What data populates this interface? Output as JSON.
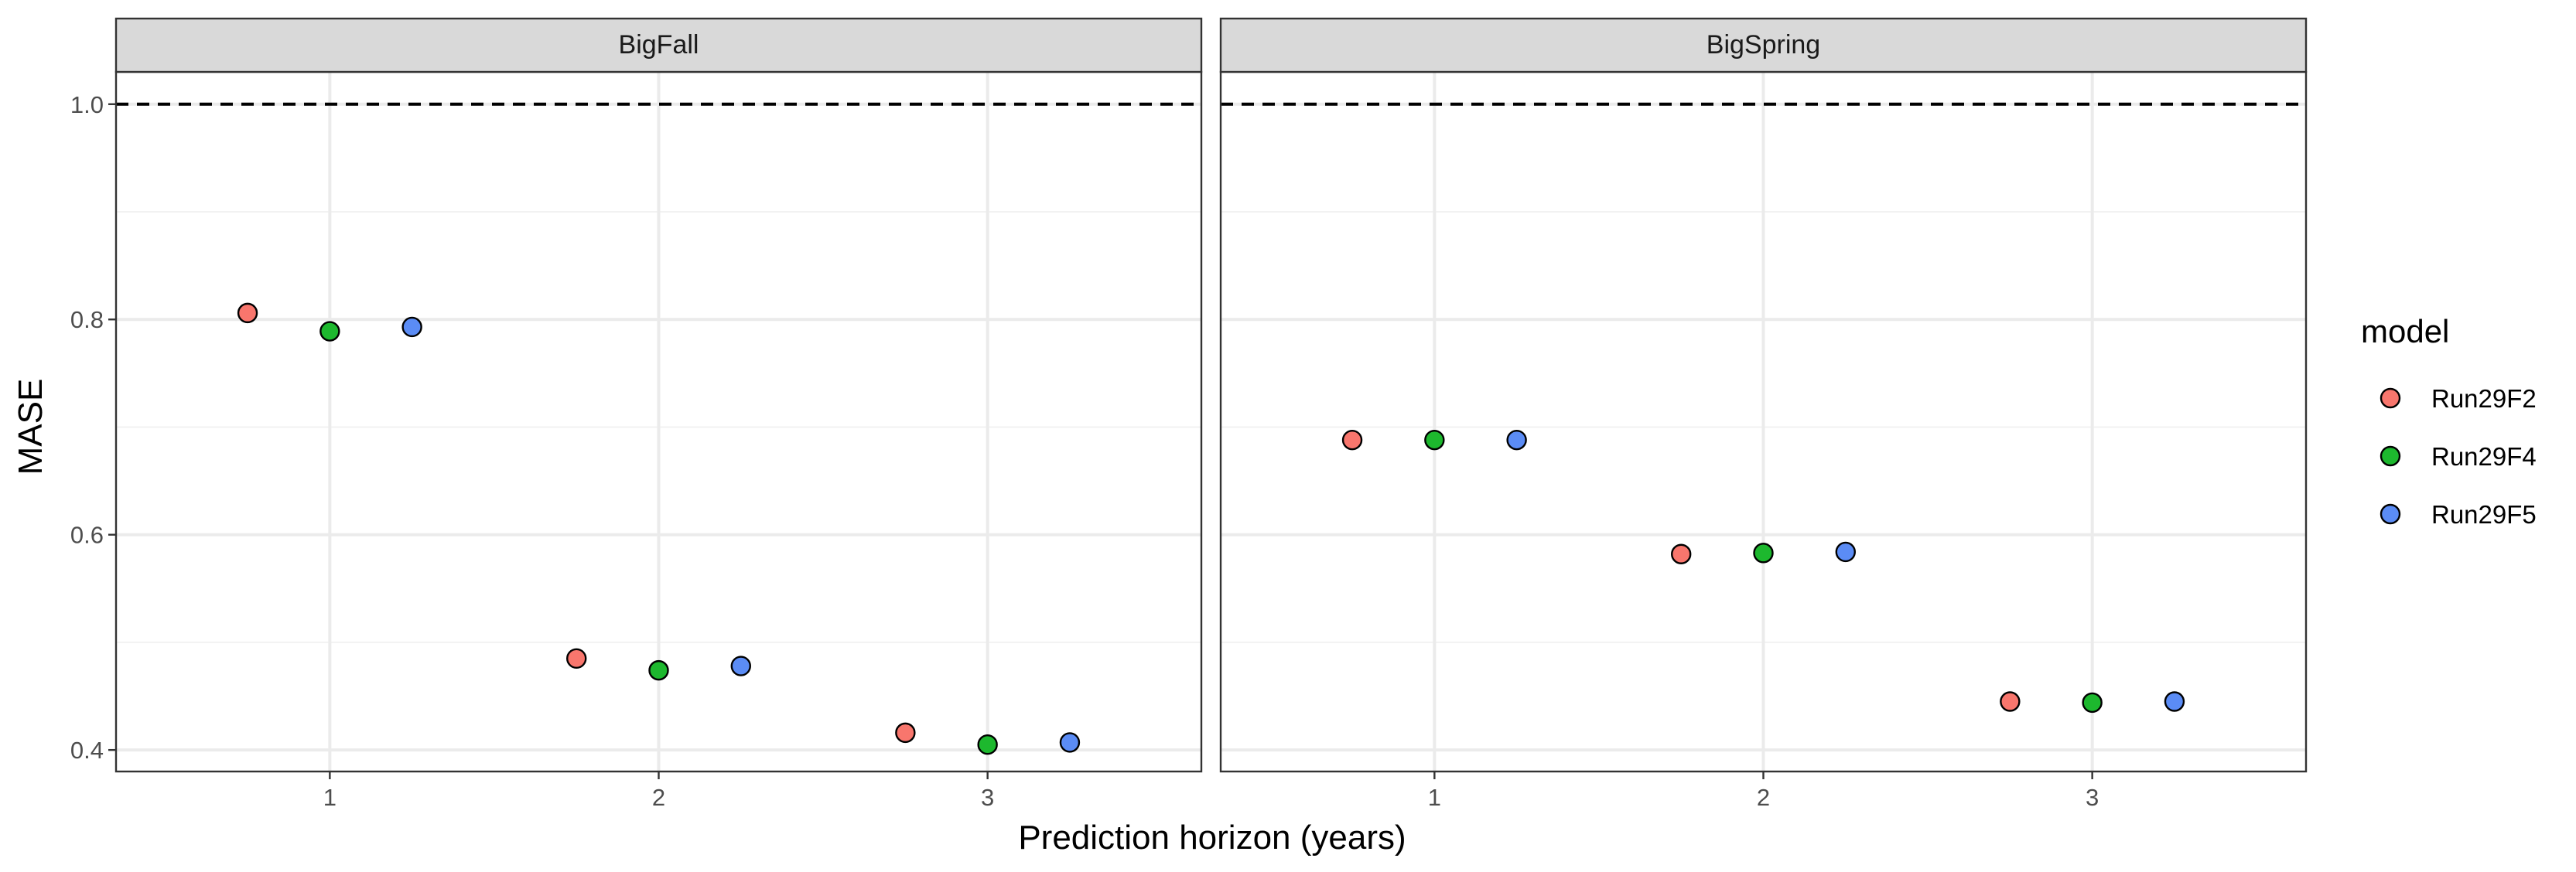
{
  "chart_data": {
    "type": "scatter",
    "facet_by": "dataset",
    "panels": [
      {
        "title": "BigFall",
        "series": [
          {
            "name": "Run29F2",
            "points": [
              [
                1,
                0.806
              ],
              [
                2,
                0.485
              ],
              [
                3,
                0.416
              ]
            ]
          },
          {
            "name": "Run29F4",
            "points": [
              [
                1,
                0.789
              ],
              [
                2,
                0.474
              ],
              [
                3,
                0.405
              ]
            ]
          },
          {
            "name": "Run29F5",
            "points": [
              [
                1,
                0.793
              ],
              [
                2,
                0.478
              ],
              [
                3,
                0.407
              ]
            ]
          }
        ]
      },
      {
        "title": "BigSpring",
        "series": [
          {
            "name": "Run29F2",
            "points": [
              [
                1,
                0.688
              ],
              [
                2,
                0.582
              ],
              [
                3,
                0.445
              ]
            ]
          },
          {
            "name": "Run29F4",
            "points": [
              [
                1,
                0.688
              ],
              [
                2,
                0.583
              ],
              [
                3,
                0.444
              ]
            ]
          },
          {
            "name": "Run29F5",
            "points": [
              [
                1,
                0.688
              ],
              [
                2,
                0.584
              ],
              [
                3,
                0.445
              ]
            ]
          }
        ]
      }
    ],
    "dodge": [
      -0.25,
      0,
      0.25
    ],
    "xlabel": "Prediction horizon (years)",
    "ylabel": "MASE",
    "xlim": [
      0.35,
      3.65
    ],
    "ylim": [
      0.38,
      1.03
    ],
    "x_ticks": [
      1,
      2,
      3
    ],
    "y_ticks": [
      0.4,
      0.6,
      0.8,
      1.0
    ],
    "y_tick_labels": [
      "0.4",
      "0.6",
      "0.8",
      "1.0"
    ],
    "y_minor": [
      0.5,
      0.7,
      0.9
    ],
    "reference_line": {
      "y": 1.0,
      "style": "dashed"
    },
    "grid": true,
    "legend": {
      "title": "model",
      "position": "right",
      "entries": [
        {
          "name": "Run29F2",
          "color": "#F8766D"
        },
        {
          "name": "Run29F4",
          "color": "#1DB82E"
        },
        {
          "name": "Run29F5",
          "color": "#5B8CF5"
        }
      ]
    }
  }
}
